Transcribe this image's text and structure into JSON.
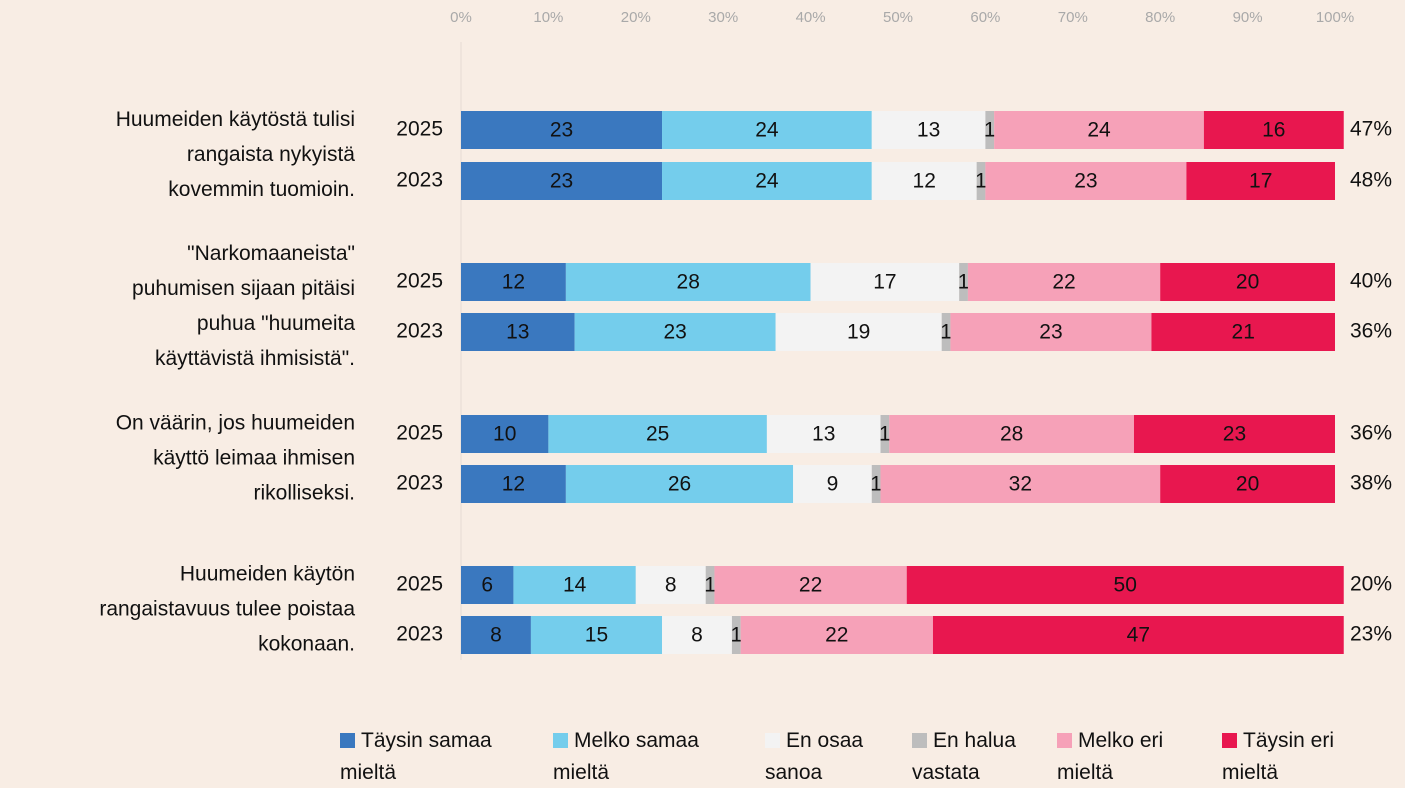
{
  "chart_data": {
    "type": "bar",
    "orientation": "horizontal",
    "stacked": true,
    "groups": [
      {
        "lines": [
          "Huumeiden käytöstä tulisi",
          "rangaista nykyistä",
          "kovemmin tuomioin."
        ]
      },
      {
        "lines": [
          "\"Narkomaaneista\"",
          "puhumisen sijaan pitäisi",
          "puhua \"huumeita",
          "käyttävistä ihmisistä\"."
        ]
      },
      {
        "lines": [
          "On väärin, jos huumeiden",
          "käyttö leimaa ihmisen",
          "rikolliseksi."
        ]
      },
      {
        "lines": [
          "Huumeiden käytön",
          "rangaistavuus tulee poistaa",
          "kokonaan."
        ]
      }
    ],
    "categories": [
      "2025",
      "2023",
      "2025",
      "2023",
      "2025",
      "2023",
      "2025",
      "2023"
    ],
    "series": [
      {
        "name": "Täysin samaa mieltä",
        "color": "#3a78bf",
        "values": [
          23,
          23,
          12,
          13,
          10,
          12,
          6,
          8
        ]
      },
      {
        "name": "Melko samaa mieltä",
        "color": "#74cdec",
        "values": [
          24,
          24,
          28,
          23,
          25,
          26,
          14,
          15
        ]
      },
      {
        "name": "En osaa sanoa",
        "color": "#f3f3f3",
        "values": [
          13,
          12,
          17,
          19,
          13,
          9,
          8,
          8
        ]
      },
      {
        "name": "En halua vastata",
        "color": "#bdbdbd",
        "values": [
          1,
          1,
          1,
          1,
          1,
          1,
          1,
          1
        ]
      },
      {
        "name": "Melko eri mieltä",
        "color": "#f6a1b8",
        "values": [
          24,
          23,
          22,
          23,
          28,
          32,
          22,
          22
        ]
      },
      {
        "name": "Täysin eri mieltä",
        "color": "#e8174f",
        "values": [
          16,
          17,
          20,
          21,
          23,
          20,
          50,
          47
        ]
      }
    ],
    "totals": {
      "values": [
        47,
        48,
        40,
        36,
        36,
        38,
        20,
        23
      ],
      "value_labels": [
        "47%",
        "48%",
        "40%",
        "36%",
        "36%",
        "38%",
        "20%",
        "23%"
      ]
    },
    "xlim": [
      0,
      100
    ],
    "xticks": [
      {
        "value": 0,
        "label": "0%"
      },
      {
        "value": 10,
        "label": "10%"
      },
      {
        "value": 20,
        "label": "20%"
      },
      {
        "value": 30,
        "label": "30%"
      },
      {
        "value": 40,
        "label": "40%"
      },
      {
        "value": 50,
        "label": "50%"
      },
      {
        "value": 60,
        "label": "60%"
      },
      {
        "value": 70,
        "label": "70%"
      },
      {
        "value": 80,
        "label": "80%"
      },
      {
        "value": 90,
        "label": "90%"
      },
      {
        "value": 100,
        "label": "100%"
      }
    ],
    "legend": "bottom"
  }
}
